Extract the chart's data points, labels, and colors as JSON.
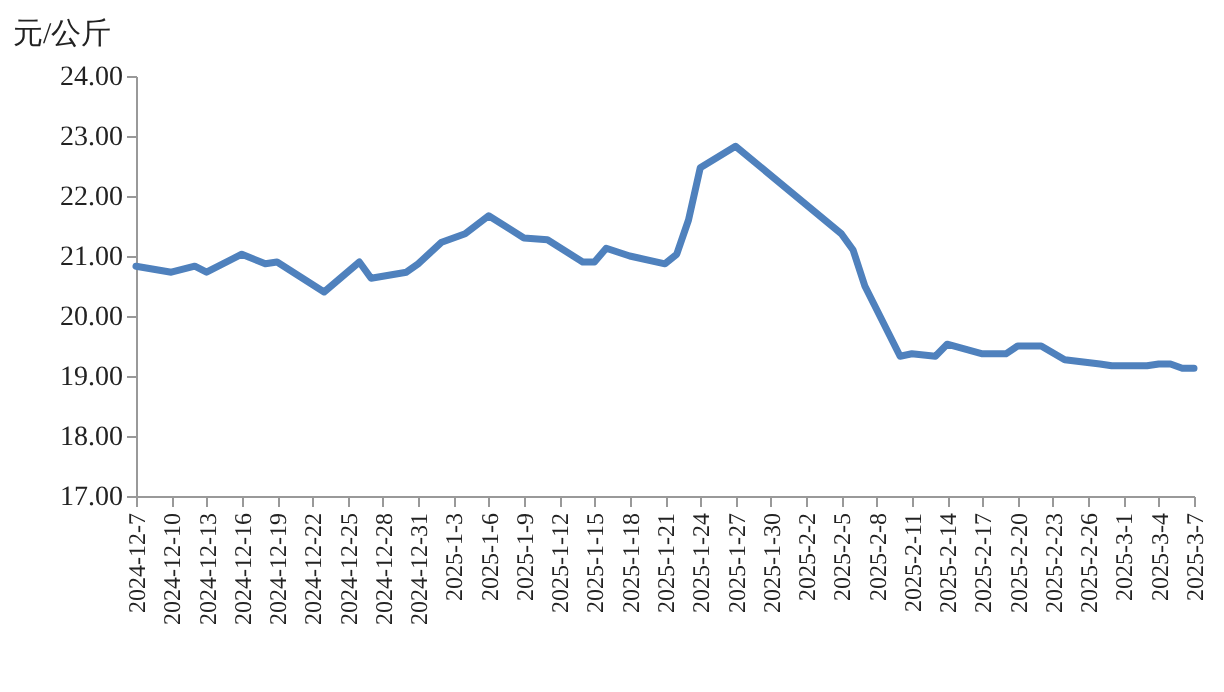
{
  "chart_data": {
    "type": "line",
    "ylabel": "元/公斤",
    "x": [
      "2024-12-07",
      "2024-12-10",
      "2024-12-12",
      "2024-12-13",
      "2024-12-16",
      "2024-12-18",
      "2024-12-19",
      "2024-12-23",
      "2024-12-26",
      "2024-12-27",
      "2024-12-30",
      "2024-12-31",
      "2025-01-02",
      "2025-01-04",
      "2025-01-06",
      "2025-01-09",
      "2025-01-11",
      "2025-01-14",
      "2025-01-15",
      "2025-01-16",
      "2025-01-18",
      "2025-01-21",
      "2025-01-22",
      "2025-01-23",
      "2025-01-24",
      "2025-01-27",
      "2025-02-05",
      "2025-02-06",
      "2025-02-07",
      "2025-02-10",
      "2025-02-11",
      "2025-02-13",
      "2025-02-14",
      "2025-02-17",
      "2025-02-19",
      "2025-02-20",
      "2025-02-22",
      "2025-02-24",
      "2025-02-27",
      "2025-02-28",
      "2025-03-03",
      "2025-03-04",
      "2025-03-05",
      "2025-03-06",
      "2025-03-07"
    ],
    "series": [
      {
        "color": "#4f81bd",
        "values": [
          20.83,
          20.73,
          20.83,
          20.73,
          21.03,
          20.87,
          20.9,
          20.4,
          20.9,
          20.63,
          20.73,
          20.87,
          21.23,
          21.37,
          21.67,
          21.3,
          21.27,
          20.9,
          20.9,
          21.13,
          21.0,
          20.87,
          21.03,
          21.6,
          22.47,
          22.83,
          21.37,
          21.1,
          20.5,
          19.33,
          19.37,
          19.33,
          19.53,
          19.37,
          19.37,
          19.5,
          19.5,
          19.27,
          19.2,
          19.17,
          19.17,
          19.2,
          19.2,
          19.13,
          19.13
        ]
      }
    ],
    "xlim": [
      "2024-12-07",
      "2025-03-07"
    ],
    "xticks": [
      {
        "value": "2024-12-07",
        "label": "2024-12-7"
      },
      {
        "value": "2024-12-10",
        "label": "2024-12-10"
      },
      {
        "value": "2024-12-13",
        "label": "2024-12-13"
      },
      {
        "value": "2024-12-16",
        "label": "2024-12-16"
      },
      {
        "value": "2024-12-19",
        "label": "2024-12-19"
      },
      {
        "value": "2024-12-22",
        "label": "2024-12-22"
      },
      {
        "value": "2024-12-25",
        "label": "2024-12-25"
      },
      {
        "value": "2024-12-28",
        "label": "2024-12-28"
      },
      {
        "value": "2024-12-31",
        "label": "2024-12-31"
      },
      {
        "value": "2025-01-03",
        "label": "2025-1-3"
      },
      {
        "value": "2025-01-06",
        "label": "2025-1-6"
      },
      {
        "value": "2025-01-09",
        "label": "2025-1-9"
      },
      {
        "value": "2025-01-12",
        "label": "2025-1-12"
      },
      {
        "value": "2025-01-15",
        "label": "2025-1-15"
      },
      {
        "value": "2025-01-18",
        "label": "2025-1-18"
      },
      {
        "value": "2025-01-21",
        "label": "2025-1-21"
      },
      {
        "value": "2025-01-24",
        "label": "2025-1-24"
      },
      {
        "value": "2025-01-27",
        "label": "2025-1-27"
      },
      {
        "value": "2025-01-30",
        "label": "2025-1-30"
      },
      {
        "value": "2025-02-02",
        "label": "2025-2-2"
      },
      {
        "value": "2025-02-05",
        "label": "2025-2-5"
      },
      {
        "value": "2025-02-08",
        "label": "2025-2-8"
      },
      {
        "value": "2025-02-11",
        "label": "2025-2-11"
      },
      {
        "value": "2025-02-14",
        "label": "2025-2-14"
      },
      {
        "value": "2025-02-17",
        "label": "2025-2-17"
      },
      {
        "value": "2025-02-20",
        "label": "2025-2-20"
      },
      {
        "value": "2025-02-23",
        "label": "2025-2-23"
      },
      {
        "value": "2025-02-26",
        "label": "2025-2-26"
      },
      {
        "value": "2025-03-01",
        "label": "2025-3-1"
      },
      {
        "value": "2025-03-04",
        "label": "2025-3-4"
      },
      {
        "value": "2025-03-07",
        "label": "2025-3-7"
      }
    ],
    "ylim": [
      17,
      24
    ],
    "yticks": [
      {
        "value": 17,
        "label": "17.00"
      },
      {
        "value": 18,
        "label": "18.00"
      },
      {
        "value": 19,
        "label": "19.00"
      },
      {
        "value": 20,
        "label": "20.00"
      },
      {
        "value": 21,
        "label": "21.00"
      },
      {
        "value": 22,
        "label": "22.00"
      },
      {
        "value": 23,
        "label": "23.00"
      },
      {
        "value": 24,
        "label": "24.00"
      }
    ],
    "grid": false,
    "marker": "none",
    "line_style": "solid"
  }
}
